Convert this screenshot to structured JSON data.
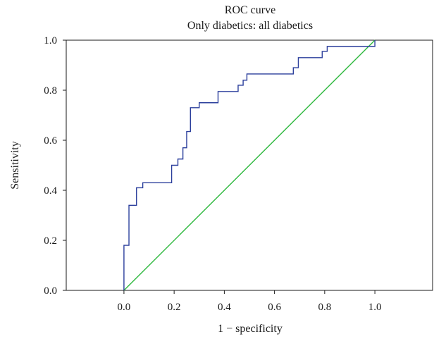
{
  "chart_data": {
    "type": "line",
    "title": "ROC curve",
    "subtitle": "Only diabetics: all diabetics",
    "xlabel": "1 − specificity",
    "ylabel": "Sensitivity",
    "xlim": [
      -0.23,
      1.23
    ],
    "ylim": [
      0.0,
      1.0
    ],
    "x_ticks": [
      0.0,
      0.2,
      0.4,
      0.6,
      0.8,
      1.0
    ],
    "x_tick_labels": [
      "0.0",
      "0.2",
      "0.4",
      "0.6",
      "0.8",
      "1.0"
    ],
    "y_ticks": [
      0.0,
      0.2,
      0.4,
      0.6,
      0.8,
      1.0
    ],
    "y_tick_labels": [
      "0.0",
      "0.2",
      "0.4",
      "0.6",
      "0.8",
      "1.0"
    ],
    "grid": false,
    "legend": "none",
    "series": [
      {
        "kind": "roc-step",
        "color": "#2b3f9c",
        "points": [
          [
            0.0,
            0.0
          ],
          [
            0.0,
            0.18
          ],
          [
            0.02,
            0.18
          ],
          [
            0.02,
            0.34
          ],
          [
            0.05,
            0.34
          ],
          [
            0.05,
            0.41
          ],
          [
            0.075,
            0.41
          ],
          [
            0.075,
            0.43
          ],
          [
            0.19,
            0.43
          ],
          [
            0.19,
            0.5
          ],
          [
            0.215,
            0.5
          ],
          [
            0.215,
            0.525
          ],
          [
            0.235,
            0.525
          ],
          [
            0.235,
            0.57
          ],
          [
            0.25,
            0.57
          ],
          [
            0.25,
            0.635
          ],
          [
            0.265,
            0.635
          ],
          [
            0.265,
            0.73
          ],
          [
            0.3,
            0.73
          ],
          [
            0.3,
            0.75
          ],
          [
            0.375,
            0.75
          ],
          [
            0.375,
            0.795
          ],
          [
            0.455,
            0.795
          ],
          [
            0.455,
            0.82
          ],
          [
            0.475,
            0.82
          ],
          [
            0.475,
            0.84
          ],
          [
            0.49,
            0.84
          ],
          [
            0.49,
            0.865
          ],
          [
            0.675,
            0.865
          ],
          [
            0.675,
            0.89
          ],
          [
            0.695,
            0.89
          ],
          [
            0.695,
            0.93
          ],
          [
            0.79,
            0.93
          ],
          [
            0.79,
            0.955
          ],
          [
            0.81,
            0.955
          ],
          [
            0.81,
            0.975
          ],
          [
            1.0,
            0.975
          ],
          [
            1.0,
            1.0
          ]
        ]
      },
      {
        "kind": "reference-diagonal",
        "color": "#2db83d",
        "points": [
          [
            0.0,
            0.0
          ],
          [
            1.0,
            1.0
          ]
        ]
      }
    ]
  }
}
